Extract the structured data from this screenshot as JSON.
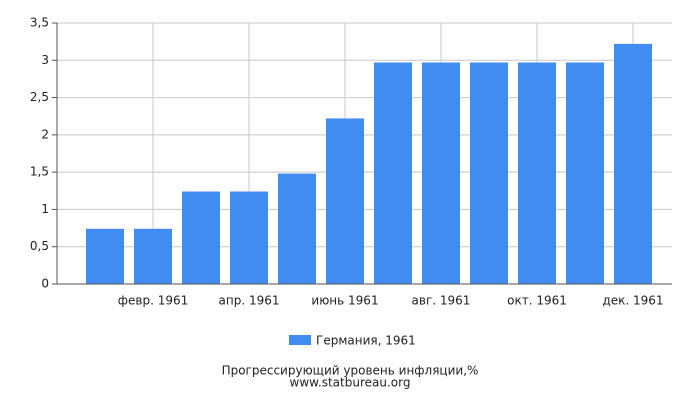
{
  "chart_data": {
    "type": "bar",
    "title": "Прогрессирующий уровень инфляции,%",
    "subtitle": "www.statbureau.org",
    "categories": [
      null,
      "февр. 1961",
      null,
      "апр. 1961",
      null,
      "июнь 1961",
      null,
      "авг. 1961",
      null,
      "окт. 1961",
      null,
      "дек. 1961"
    ],
    "series": [
      {
        "name": "Германия, 1961",
        "color": "#418cf0",
        "values": [
          0.74,
          0.74,
          1.24,
          1.24,
          1.48,
          2.22,
          2.97,
          2.97,
          2.97,
          2.97,
          2.97,
          3.22
        ]
      }
    ],
    "ylim": [
      0,
      3.5
    ],
    "yticks": [
      0,
      {
        "value": 0.5,
        "label": "0,5"
      },
      1,
      {
        "value": 1.5,
        "label": "1,5"
      },
      2,
      {
        "value": 2.5,
        "label": "2,5"
      },
      3,
      {
        "value": 3.5,
        "label": "3,5"
      }
    ],
    "grid": true
  }
}
